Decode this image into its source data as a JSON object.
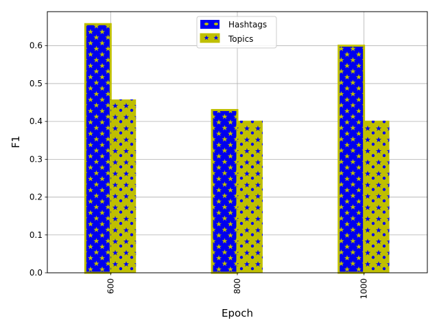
{
  "chart_data": {
    "type": "bar",
    "xlabel": "Epoch",
    "ylabel": "F1",
    "categories": [
      "600",
      "800",
      "1000"
    ],
    "ylim": [
      0,
      0.69
    ],
    "yticks": [
      "0.0",
      "0.1",
      "0.2",
      "0.3",
      "0.4",
      "0.5",
      "0.6"
    ],
    "grid": true,
    "legend_position": "top-center",
    "series": [
      {
        "name": "Hashtags",
        "values": [
          0.657,
          0.43,
          0.6
        ],
        "color": "#0000ee",
        "edge_color": "#bfbf00",
        "hatch": "stars"
      },
      {
        "name": "Topics",
        "values": [
          0.458,
          0.402,
          0.402
        ],
        "color": "#bfbf00",
        "edge_color": "#0000ee",
        "hatch": "stars-circles"
      }
    ]
  }
}
